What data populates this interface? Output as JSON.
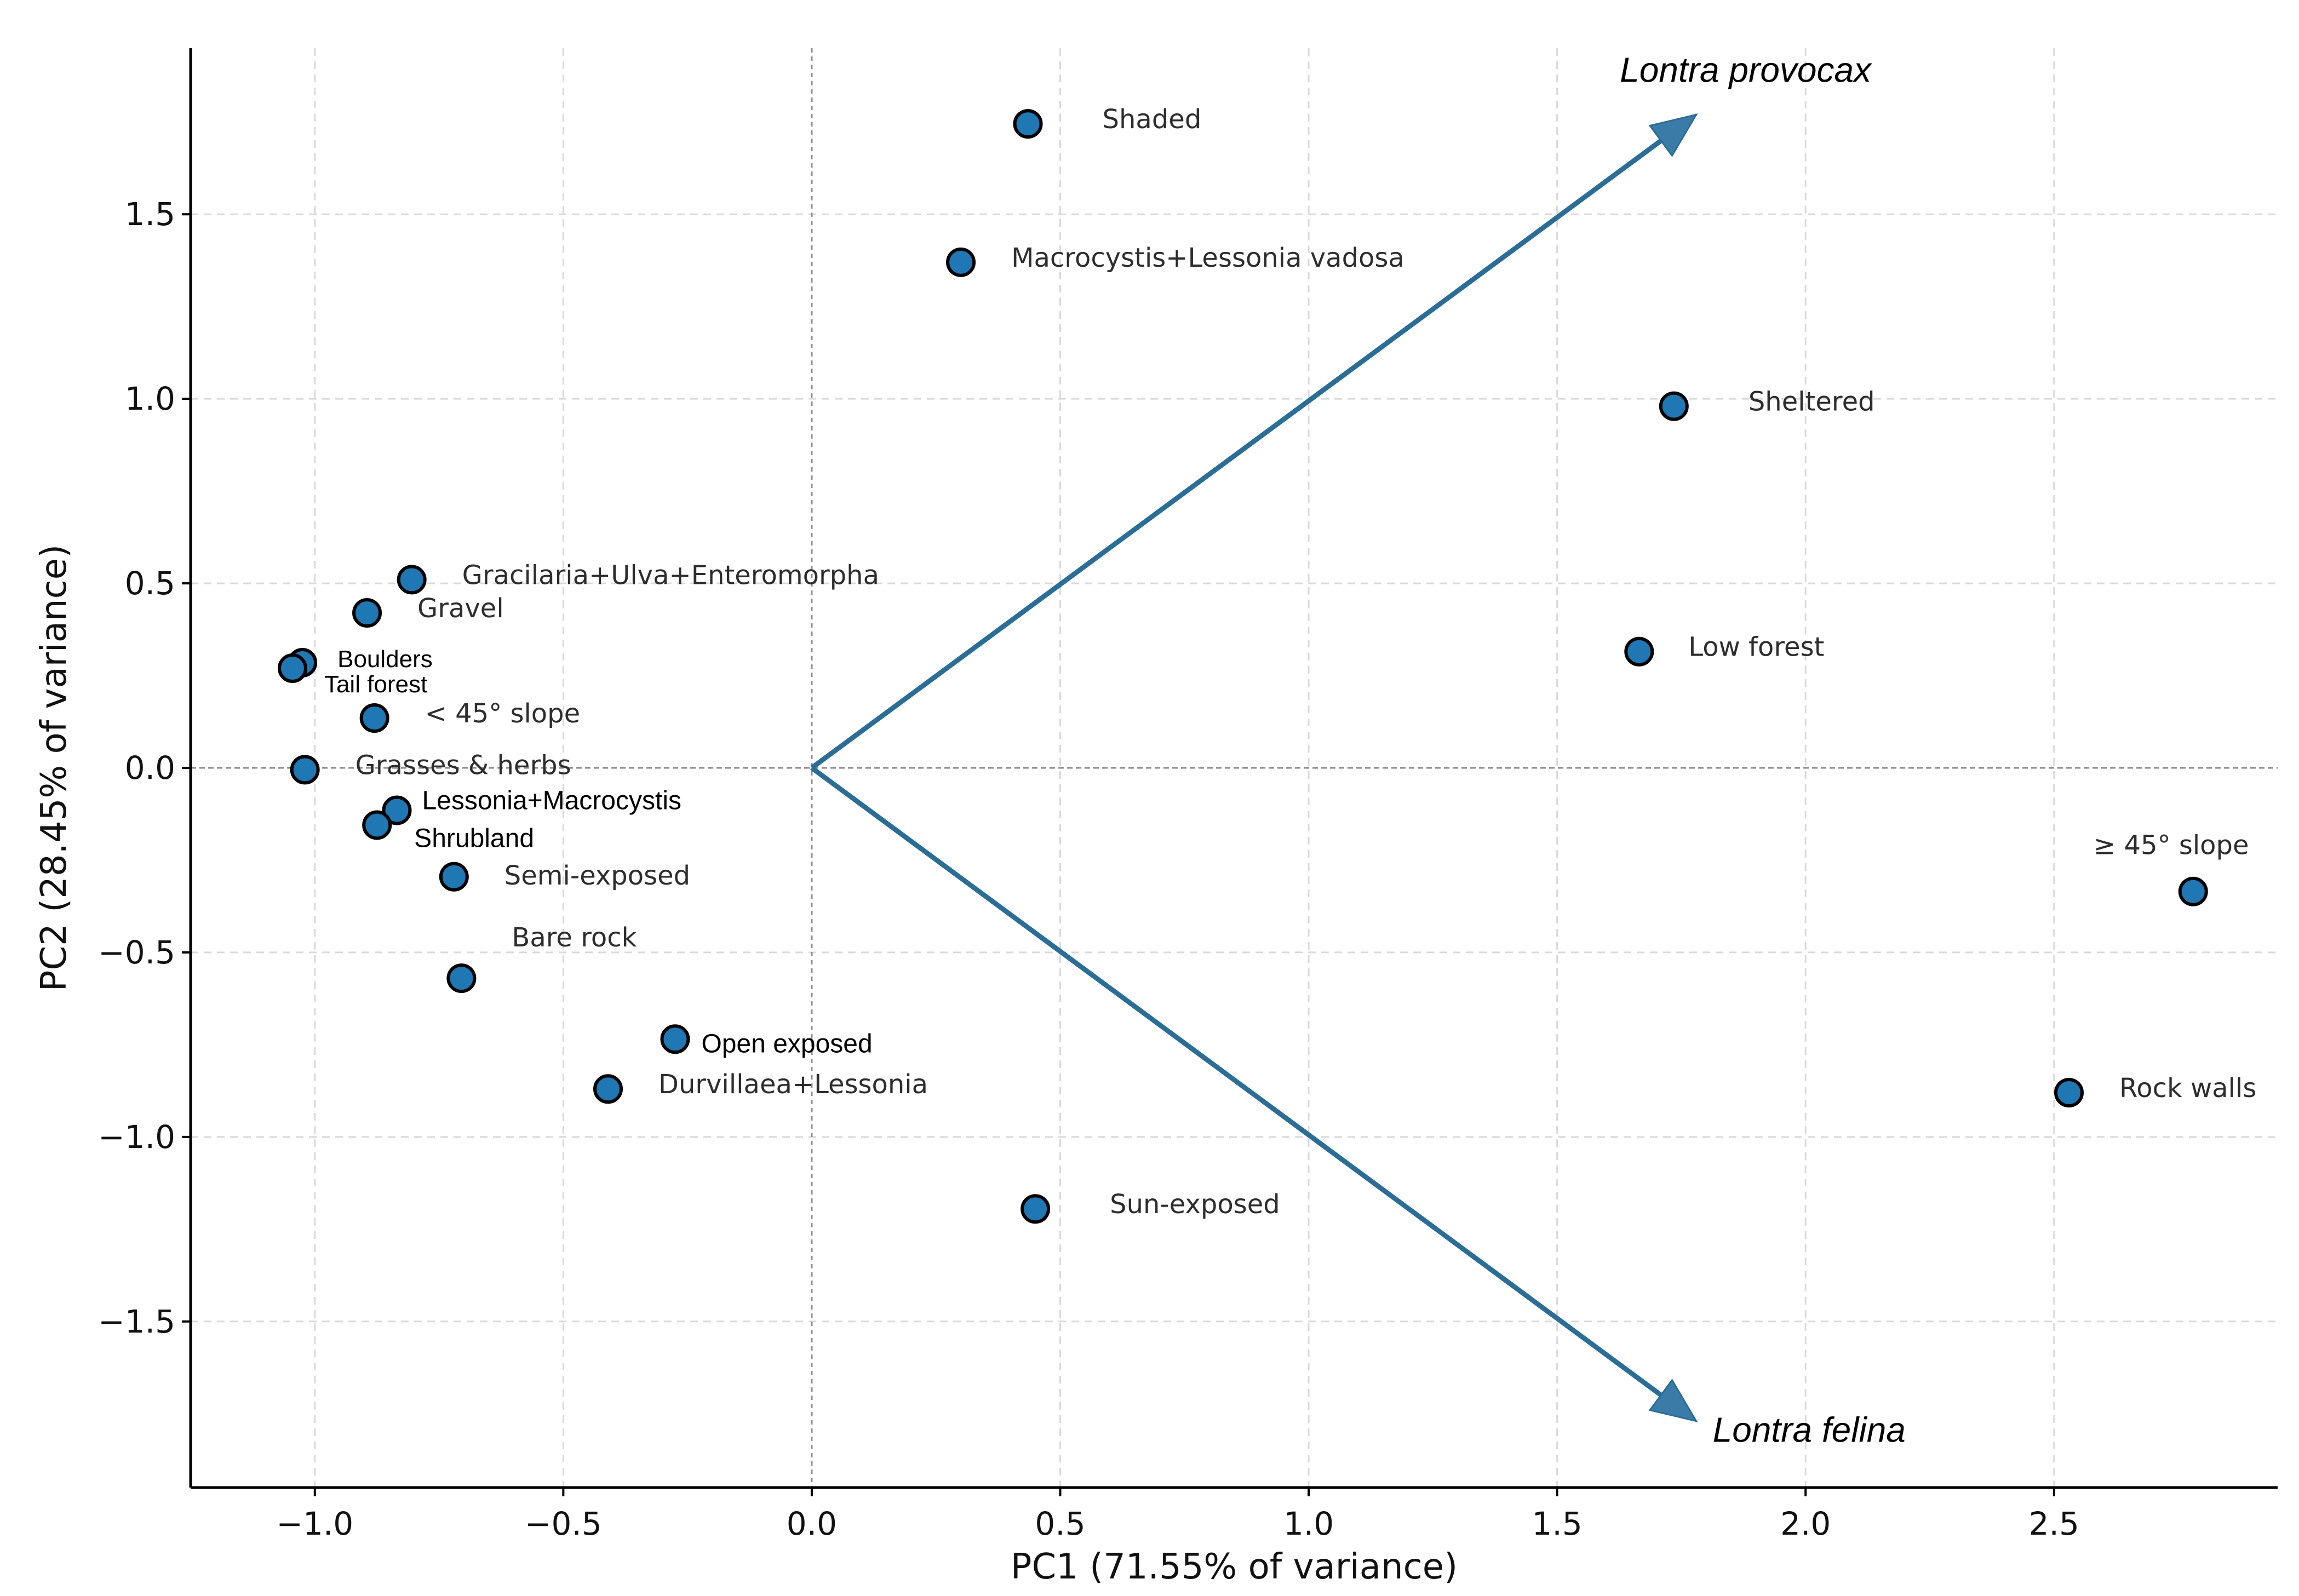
{
  "chart_data": {
    "type": "scatter",
    "xlabel": "PC1 (71.55% of variance)",
    "ylabel": "PC2 (28.45% of variance)",
    "xlim": [
      -1.25,
      2.95
    ],
    "ylim": [
      -1.95,
      1.95
    ],
    "x_ticks": [
      -1.0,
      -0.5,
      0.0,
      0.5,
      1.0,
      1.5,
      2.0,
      2.5
    ],
    "y_ticks": [
      -1.5,
      -1.0,
      -0.5,
      0.0,
      0.5,
      1.0,
      1.5
    ],
    "x_tick_labels": [
      "−1.0",
      "−0.5",
      "0.0",
      "0.5",
      "1.0",
      "1.5",
      "2.0",
      "2.5"
    ],
    "y_tick_labels": [
      "−1.5",
      "−1.0",
      "−0.5",
      "0.0",
      "0.5",
      "1.0",
      "1.5"
    ],
    "grid": true,
    "point_color": "#1f77b4",
    "vector_color": "#2a6d96",
    "points": [
      {
        "label": "Shaded",
        "x": 0.435,
        "y": 1.745,
        "style": "normal"
      },
      {
        "label": "Macrocystis+Lessonia vadosa",
        "x": 0.3,
        "y": 1.37,
        "style": "normal"
      },
      {
        "label": "Sheltered",
        "x": 1.735,
        "y": 0.98,
        "style": "normal"
      },
      {
        "label": "Gracilaria+Ulva+Enteromorpha",
        "x": -0.805,
        "y": 0.51,
        "style": "normal"
      },
      {
        "label": "Gravel",
        "x": -0.895,
        "y": 0.42,
        "style": "normal"
      },
      {
        "label": "Boulders",
        "x": -1.025,
        "y": 0.285,
        "style": "small"
      },
      {
        "label": "Tail forest",
        "x": -1.045,
        "y": 0.27,
        "style": "small"
      },
      {
        "label": "< 45° slope",
        "x": -0.88,
        "y": 0.135,
        "style": "normal"
      },
      {
        "label": "Low forest",
        "x": 1.665,
        "y": 0.315,
        "style": "normal"
      },
      {
        "label": "Grasses & herbs",
        "x": -1.02,
        "y": -0.005,
        "style": "normal"
      },
      {
        "label": "Lessonia+Macrocystis",
        "x": -0.835,
        "y": -0.115,
        "style": "dark"
      },
      {
        "label": "Shrubland",
        "x": -0.875,
        "y": -0.155,
        "style": "dark"
      },
      {
        "label": "Semi-exposed",
        "x": -0.72,
        "y": -0.295,
        "style": "normal"
      },
      {
        "label": "≥ 45° slope",
        "x": 2.78,
        "y": -0.335,
        "style": "normal"
      },
      {
        "label": "Bare rock",
        "x": -0.705,
        "y": -0.57,
        "style": "normal"
      },
      {
        "label": "Open exposed",
        "x": -0.275,
        "y": -0.735,
        "style": "dark"
      },
      {
        "label": "Durvillaea+Lessonia",
        "x": -0.41,
        "y": -0.87,
        "style": "normal"
      },
      {
        "label": "Rock walls",
        "x": 2.53,
        "y": -0.88,
        "style": "normal"
      },
      {
        "label": "Sun-exposed",
        "x": 0.45,
        "y": -1.195,
        "style": "normal"
      }
    ],
    "vectors": [
      {
        "label": "Lontra provocax",
        "x": 1.78,
        "y": 1.77
      },
      {
        "label": "Lontra felina",
        "x": 1.78,
        "y": -1.77
      }
    ]
  }
}
